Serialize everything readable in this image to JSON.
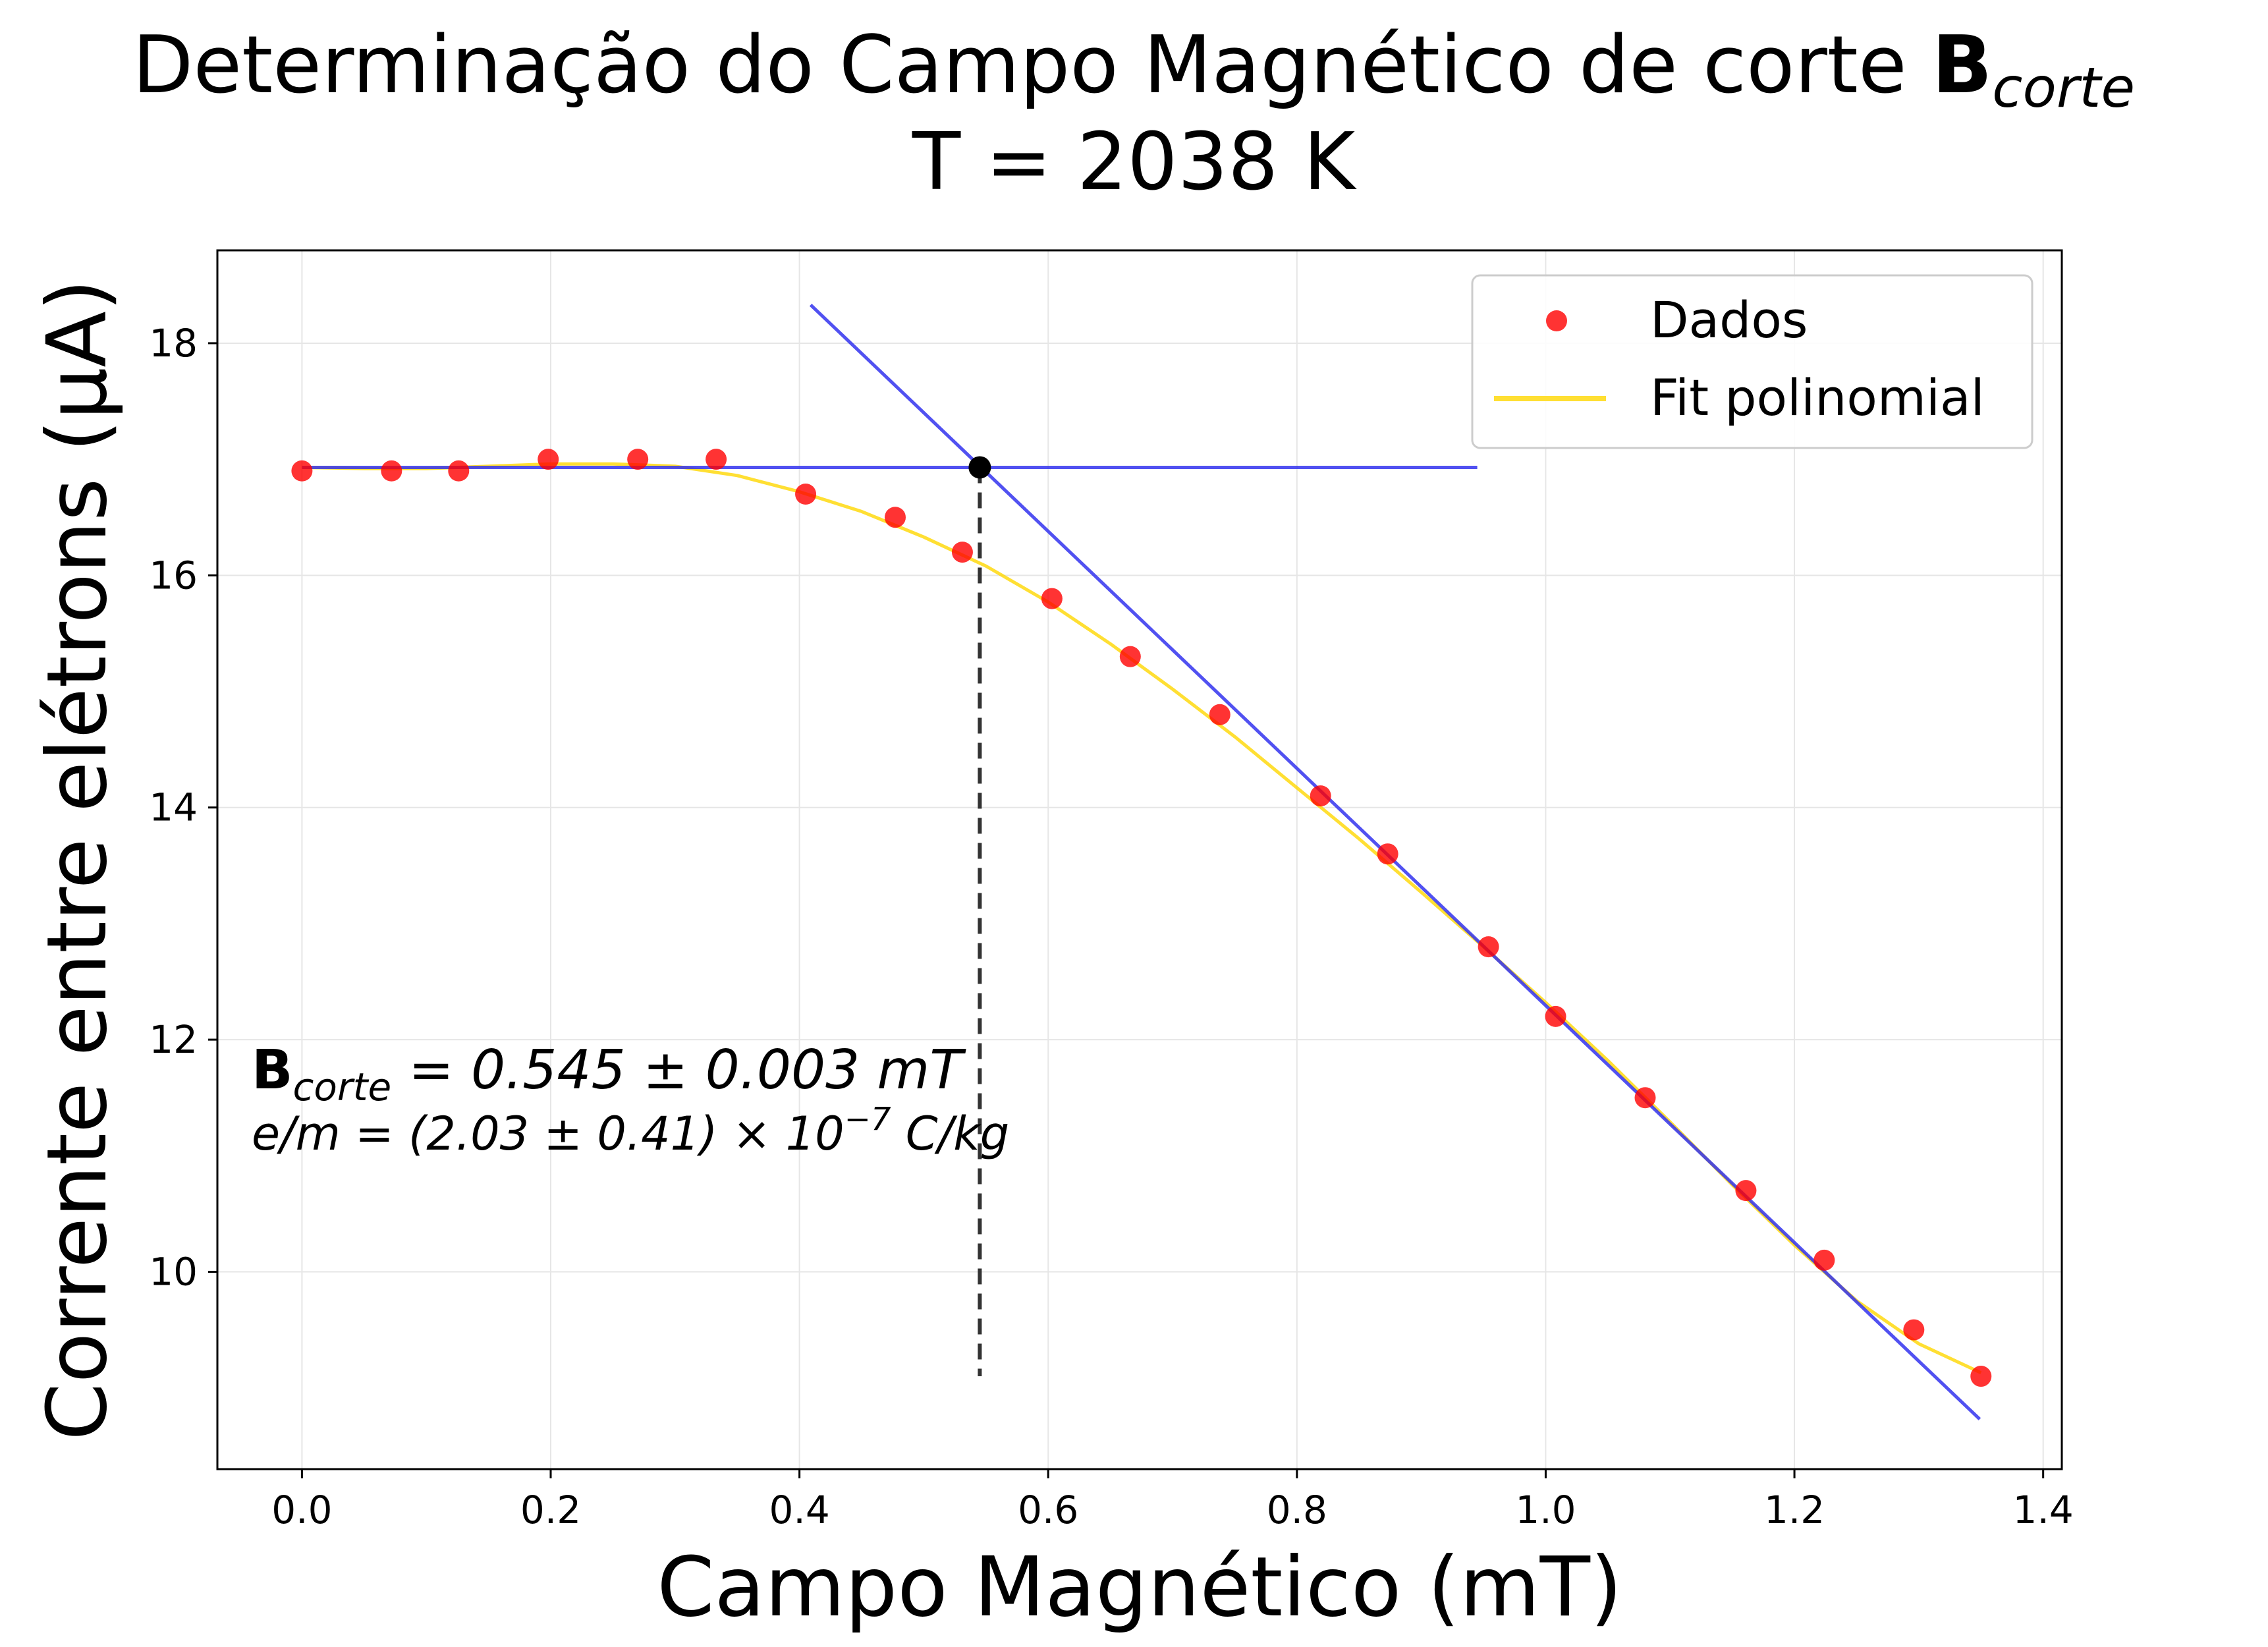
{
  "chart_data": {
    "type": "scatter",
    "title_main": "Determinação do Campo Magnético de corte ",
    "title_bold": "B",
    "title_sub": "corte",
    "subtitle": "T = 2038 K",
    "xlabel": "Campo Magnético (mT)",
    "ylabel": "Corrente entre elétrons (μA)",
    "xlim": [
      -0.068,
      1.415
    ],
    "ylim": [
      8.3,
      18.8
    ],
    "xticks": [
      0.0,
      0.2,
      0.4,
      0.6,
      0.8,
      1.0,
      1.2,
      1.4
    ],
    "xtick_labels": [
      "0.0",
      "0.2",
      "0.4",
      "0.6",
      "0.8",
      "1.0",
      "1.2",
      "1.4"
    ],
    "yticks": [
      10,
      12,
      14,
      16,
      18
    ],
    "ytick_labels": [
      "10",
      "12",
      "14",
      "16",
      "18"
    ],
    "grid": true,
    "legend_position": "top-right",
    "series": [
      {
        "name": "Dados",
        "kind": "scatter",
        "color": "#ff0000",
        "x": [
          0.0,
          0.072,
          0.126,
          0.198,
          0.27,
          0.333,
          0.405,
          0.477,
          0.531,
          0.603,
          0.666,
          0.738,
          0.819,
          0.873,
          0.954,
          1.008,
          1.08,
          1.161,
          1.224,
          1.296,
          1.35
        ],
        "y": [
          16.9,
          16.9,
          16.9,
          17.0,
          17.0,
          17.0,
          16.7,
          16.5,
          16.2,
          15.8,
          15.3,
          14.8,
          14.1,
          13.6,
          12.8,
          12.2,
          11.5,
          10.7,
          10.1,
          9.5,
          9.1
        ]
      },
      {
        "name": "Fit polinomial",
        "kind": "line",
        "color": "#ffd700",
        "x": [
          0.0,
          0.05,
          0.1,
          0.15,
          0.2,
          0.25,
          0.3,
          0.35,
          0.4,
          0.45,
          0.5,
          0.55,
          0.6,
          0.65,
          0.7,
          0.75,
          0.8,
          0.85,
          0.9,
          0.95,
          1.0,
          1.05,
          1.1,
          1.15,
          1.2,
          1.25,
          1.3,
          1.35
        ],
        "y": [
          16.93,
          16.92,
          16.92,
          16.94,
          16.96,
          16.96,
          16.94,
          16.86,
          16.72,
          16.55,
          16.33,
          16.08,
          15.77,
          15.41,
          15.02,
          14.61,
          14.17,
          13.73,
          13.27,
          12.8,
          12.32,
          11.82,
          11.29,
          10.75,
          10.23,
          9.75,
          9.38,
          9.13
        ]
      }
    ],
    "tangent_lines": [
      {
        "x": [
          0.0,
          0.945
        ],
        "y": [
          16.93,
          16.93
        ],
        "color": "#3333ee"
      },
      {
        "x": [
          0.409,
          1.349
        ],
        "y": [
          18.33,
          8.73
        ],
        "color": "#3333ee"
      }
    ],
    "cut_point": {
      "x": 0.545,
      "y": 16.93
    },
    "cut_line": {
      "x": 0.545,
      "y_from": 16.93,
      "y_to": 9.1
    },
    "annotation_line1_bold": "B",
    "annotation_line1_sub": "corte",
    "annotation_line1_rest": " = 0.545 ± 0.003 mT",
    "annotation_line2_main": "e/m = (2.03 ± 0.41) × 10",
    "annotation_line2_sup": "−7",
    "annotation_line2_unit": " C/kg"
  }
}
